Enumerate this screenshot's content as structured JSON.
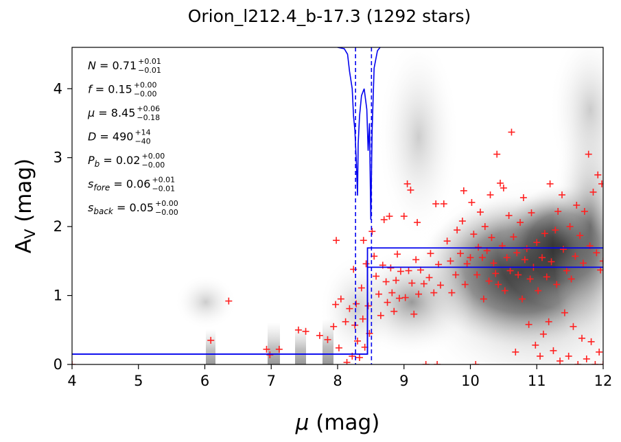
{
  "chart_data": {
    "type": "scatter",
    "title": "Orion_l212.4_b-17.3 (1292 stars)",
    "xlabel": {
      "main": "μ",
      "rest": " (mag)"
    },
    "ylabel": {
      "main": "A",
      "sub": "V",
      "rest": " (mag)"
    },
    "xlim": [
      4,
      12
    ],
    "ylim": [
      0,
      4.6
    ],
    "xticks": [
      "4",
      "5",
      "6",
      "7",
      "8",
      "9",
      "10",
      "11",
      "12"
    ],
    "yticks": [
      "0",
      "1",
      "2",
      "3",
      "4"
    ],
    "grid": false,
    "colors": {
      "points": "#ff2020",
      "model": "#0000ee",
      "density": "#1a1a1a"
    },
    "annotations": [
      {
        "sym": "N",
        "val": " = 0.71",
        "sup": "+0.01",
        "sub": "−0.01"
      },
      {
        "sym": "f",
        "val": " = 0.15",
        "sup": "+0.00",
        "sub": "−0.00"
      },
      {
        "sym": "μ",
        "val": " = 8.45",
        "sup": "+0.06",
        "sub": "−0.18"
      },
      {
        "sym": "D",
        "val": " = 490",
        "sup": "+14",
        "sub": "−40"
      },
      {
        "sym": "P",
        "symsub": "b",
        "val": " = 0.02",
        "sup": "+0.00",
        "sub": "−0.00"
      },
      {
        "sym": "s",
        "symsub": "fore",
        "val": " = 0.06",
        "sup": "+0.01",
        "sub": "−0.01"
      },
      {
        "sym": "s",
        "symsub": "back",
        "val": " = 0.05",
        "sup": "+0.00",
        "sub": "−0.00"
      }
    ],
    "model": {
      "step_x": 8.45,
      "foreground_av": 0.15,
      "background_band": [
        1.41,
        1.69
      ],
      "dashed_x": [
        8.27,
        8.51
      ]
    },
    "series": [
      {
        "type": "scatter",
        "marker": "plus",
        "points": [
          [
            4.0,
            0.0
          ],
          [
            6.09,
            0.35
          ],
          [
            6.36,
            0.92
          ],
          [
            6.93,
            0.22
          ],
          [
            6.98,
            0.14
          ],
          [
            7.12,
            0.22
          ],
          [
            7.41,
            0.5
          ],
          [
            7.52,
            0.48
          ],
          [
            7.73,
            0.42
          ],
          [
            7.85,
            0.36
          ],
          [
            7.94,
            0.55
          ],
          [
            7.97,
            0.87
          ],
          [
            7.98,
            1.8
          ],
          [
            8.02,
            0.24
          ],
          [
            8.05,
            0.95
          ],
          [
            8.12,
            0.62
          ],
          [
            8.14,
            0.03
          ],
          [
            8.18,
            0.81
          ],
          [
            8.22,
            0.12
          ],
          [
            8.24,
            1.38
          ],
          [
            8.26,
            0.57
          ],
          [
            8.28,
            0.88
          ],
          [
            8.3,
            0.34
          ],
          [
            8.33,
            0.1
          ],
          [
            8.36,
            1.11
          ],
          [
            8.38,
            0.66
          ],
          [
            8.39,
            1.8
          ],
          [
            8.41,
            0.25
          ],
          [
            8.43,
            1.46
          ],
          [
            8.46,
            0.85
          ],
          [
            8.48,
            0.45
          ],
          [
            8.52,
            1.93
          ],
          [
            8.55,
            1.57
          ],
          [
            8.58,
            1.28
          ],
          [
            8.62,
            1.02
          ],
          [
            8.65,
            0.71
          ],
          [
            8.68,
            1.44
          ],
          [
            8.7,
            2.1
          ],
          [
            8.73,
            1.2
          ],
          [
            8.75,
            0.9
          ],
          [
            8.78,
            2.15
          ],
          [
            8.8,
            1.4
          ],
          [
            8.82,
            1.04
          ],
          [
            8.85,
            0.77
          ],
          [
            8.88,
            1.22
          ],
          [
            8.9,
            1.6
          ],
          [
            8.93,
            0.96
          ],
          [
            8.95,
            1.35
          ],
          [
            9.0,
            2.15
          ],
          [
            9.02,
            0.97
          ],
          [
            9.05,
            2.62
          ],
          [
            9.07,
            1.36
          ],
          [
            9.1,
            2.53
          ],
          [
            9.12,
            1.18
          ],
          [
            9.15,
            0.73
          ],
          [
            9.18,
            1.52
          ],
          [
            9.2,
            2.06
          ],
          [
            9.22,
            1.02
          ],
          [
            9.25,
            1.37
          ],
          [
            9.3,
            1.17
          ],
          [
            9.33,
            0.0
          ],
          [
            9.38,
            1.26
          ],
          [
            9.4,
            1.61
          ],
          [
            9.45,
            1.04
          ],
          [
            9.48,
            2.33
          ],
          [
            9.5,
            0.0
          ],
          [
            9.52,
            1.45
          ],
          [
            9.55,
            1.15
          ],
          [
            9.6,
            2.33
          ],
          [
            9.65,
            1.79
          ],
          [
            9.7,
            1.5
          ],
          [
            9.72,
            1.04
          ],
          [
            9.78,
            1.3
          ],
          [
            9.8,
            1.95
          ],
          [
            9.85,
            1.61
          ],
          [
            9.88,
            2.08
          ],
          [
            9.9,
            2.52
          ],
          [
            9.92,
            1.16
          ],
          [
            9.95,
            1.46
          ],
          [
            10.0,
            1.55
          ],
          [
            10.02,
            2.35
          ],
          [
            10.05,
            1.89
          ],
          [
            10.08,
            0.0
          ],
          [
            10.1,
            1.3
          ],
          [
            10.12,
            1.7
          ],
          [
            10.15,
            2.21
          ],
          [
            10.18,
            1.55
          ],
          [
            10.2,
            0.95
          ],
          [
            10.22,
            2.0
          ],
          [
            10.25,
            1.65
          ],
          [
            10.28,
            1.21
          ],
          [
            10.3,
            2.46
          ],
          [
            10.32,
            1.84
          ],
          [
            10.35,
            1.47
          ],
          [
            10.38,
            1.32
          ],
          [
            10.4,
            3.05
          ],
          [
            10.42,
            1.16
          ],
          [
            10.45,
            2.63
          ],
          [
            10.48,
            1.72
          ],
          [
            10.5,
            2.56
          ],
          [
            10.52,
            1.07
          ],
          [
            10.55,
            1.55
          ],
          [
            10.58,
            2.16
          ],
          [
            10.6,
            1.36
          ],
          [
            10.62,
            3.37
          ],
          [
            10.65,
            1.85
          ],
          [
            10.68,
            0.18
          ],
          [
            10.7,
            1.62
          ],
          [
            10.72,
            1.3
          ],
          [
            10.75,
            2.06
          ],
          [
            10.78,
            0.95
          ],
          [
            10.8,
            2.42
          ],
          [
            10.82,
            1.52
          ],
          [
            10.85,
            1.68
          ],
          [
            10.88,
            0.58
          ],
          [
            10.9,
            1.24
          ],
          [
            10.92,
            2.2
          ],
          [
            10.95,
            1.41
          ],
          [
            10.98,
            0.28
          ],
          [
            11.0,
            1.77
          ],
          [
            11.02,
            1.07
          ],
          [
            11.05,
            0.12
          ],
          [
            11.08,
            1.55
          ],
          [
            11.1,
            0.44
          ],
          [
            11.12,
            1.9
          ],
          [
            11.15,
            1.27
          ],
          [
            11.18,
            0.62
          ],
          [
            11.2,
            2.62
          ],
          [
            11.22,
            1.49
          ],
          [
            11.25,
            0.2
          ],
          [
            11.28,
            1.95
          ],
          [
            11.3,
            1.16
          ],
          [
            11.32,
            2.22
          ],
          [
            11.35,
            0.05
          ],
          [
            11.38,
            2.46
          ],
          [
            11.4,
            1.67
          ],
          [
            11.42,
            0.75
          ],
          [
            11.45,
            1.36
          ],
          [
            11.48,
            0.12
          ],
          [
            11.5,
            2.0
          ],
          [
            11.52,
            1.24
          ],
          [
            11.55,
            0.55
          ],
          [
            11.58,
            1.57
          ],
          [
            11.6,
            2.31
          ],
          [
            11.62,
            0.0
          ],
          [
            11.65,
            1.87
          ],
          [
            11.68,
            0.38
          ],
          [
            11.7,
            1.47
          ],
          [
            11.72,
            2.22
          ],
          [
            11.75,
            0.08
          ],
          [
            11.78,
            3.05
          ],
          [
            11.8,
            1.72
          ],
          [
            11.82,
            0.33
          ],
          [
            11.85,
            2.5
          ],
          [
            11.88,
            0.0
          ],
          [
            11.9,
            1.62
          ],
          [
            11.92,
            2.75
          ],
          [
            11.94,
            0.18
          ],
          [
            11.96,
            1.37
          ],
          [
            11.98,
            2.62
          ],
          [
            12.0,
            0.0
          ],
          [
            12.0,
            1.5
          ]
        ]
      }
    ]
  }
}
